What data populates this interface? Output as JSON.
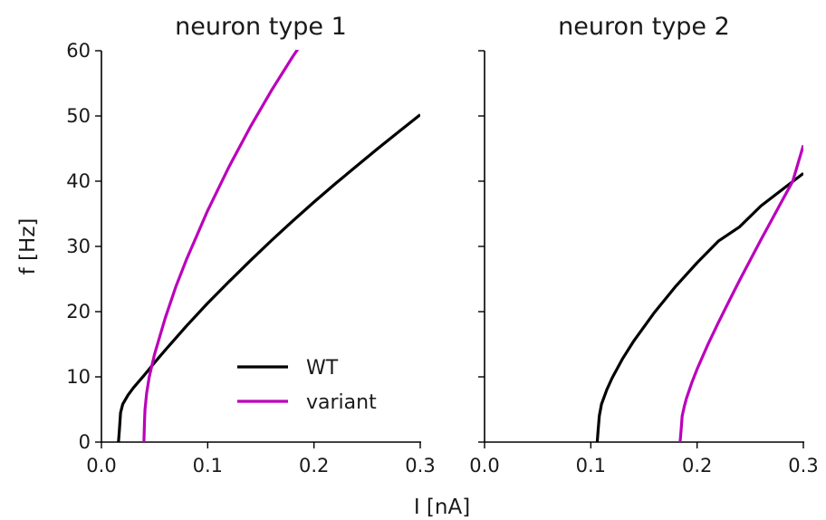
{
  "chart_data": [
    {
      "type": "line",
      "title": "neuron type 1",
      "xlabel": "",
      "ylabel": "f [Hz]",
      "xlim": [
        0,
        0.3
      ],
      "ylim": [
        0,
        60
      ],
      "xticks": [
        "0.0",
        "0.1",
        "0.2",
        "0.3"
      ],
      "yticks": [
        "0",
        "10",
        "20",
        "30",
        "40",
        "50",
        "60"
      ],
      "grid": false,
      "legend": "lower-right",
      "series": [
        {
          "name": "WT",
          "color": "#000000",
          "x": [
            0.016,
            0.017,
            0.018,
            0.02,
            0.025,
            0.03,
            0.04,
            0.05,
            0.06,
            0.08,
            0.1,
            0.12,
            0.14,
            0.16,
            0.18,
            0.2,
            0.22,
            0.24,
            0.26,
            0.28,
            0.3
          ],
          "y": [
            0,
            2,
            4.5,
            5.8,
            7.2,
            8.3,
            10.2,
            12.2,
            14.1,
            17.8,
            21.3,
            24.6,
            27.8,
            30.9,
            33.9,
            36.8,
            39.6,
            42.3,
            45.0,
            47.6,
            50.2
          ]
        },
        {
          "name": "variant",
          "color": "#bb00bb",
          "x": [
            0.04,
            0.0405,
            0.041,
            0.0425,
            0.045,
            0.05,
            0.06,
            0.07,
            0.08,
            0.1,
            0.12,
            0.14,
            0.16,
            0.18,
            0.19
          ],
          "y": [
            0,
            3,
            5,
            7.5,
            10,
            13.5,
            19,
            23.8,
            28,
            35.5,
            42.2,
            48.3,
            53.9,
            59.1,
            61.5
          ]
        }
      ]
    },
    {
      "type": "line",
      "title": "neuron type 2",
      "xlabel": "",
      "ylabel": "",
      "xlim": [
        0,
        0.3
      ],
      "ylim": [
        0,
        60
      ],
      "xticks": [
        "0.0",
        "0.1",
        "0.2",
        "0.3"
      ],
      "grid": false,
      "series": [
        {
          "name": "WT",
          "color": "#000000",
          "x": [
            0.106,
            0.107,
            0.108,
            0.11,
            0.115,
            0.12,
            0.13,
            0.14,
            0.16,
            0.18,
            0.2,
            0.22,
            0.24,
            0.26,
            0.28,
            0.3
          ],
          "y": [
            0,
            2,
            4,
            5.8,
            8,
            9.8,
            12.8,
            15.4,
            19.9,
            23.9,
            27.5,
            30.8,
            33.0,
            36.2,
            38.7,
            41.2
          ]
        },
        {
          "name": "variant",
          "color": "#bb00bb",
          "x": [
            0.184,
            0.185,
            0.186,
            0.188,
            0.19,
            0.195,
            0.2,
            0.21,
            0.22,
            0.23,
            0.24,
            0.25,
            0.26,
            0.27,
            0.28,
            0.29,
            0.3
          ],
          "y": [
            0,
            2,
            4,
            5.5,
            6.7,
            9.1,
            11.2,
            14.9,
            18.3,
            21.6,
            24.8,
            27.9,
            31.0,
            34.0,
            37.0,
            40.0,
            45.5
          ]
        }
      ]
    }
  ],
  "shared_xlabel": "I [nA]"
}
